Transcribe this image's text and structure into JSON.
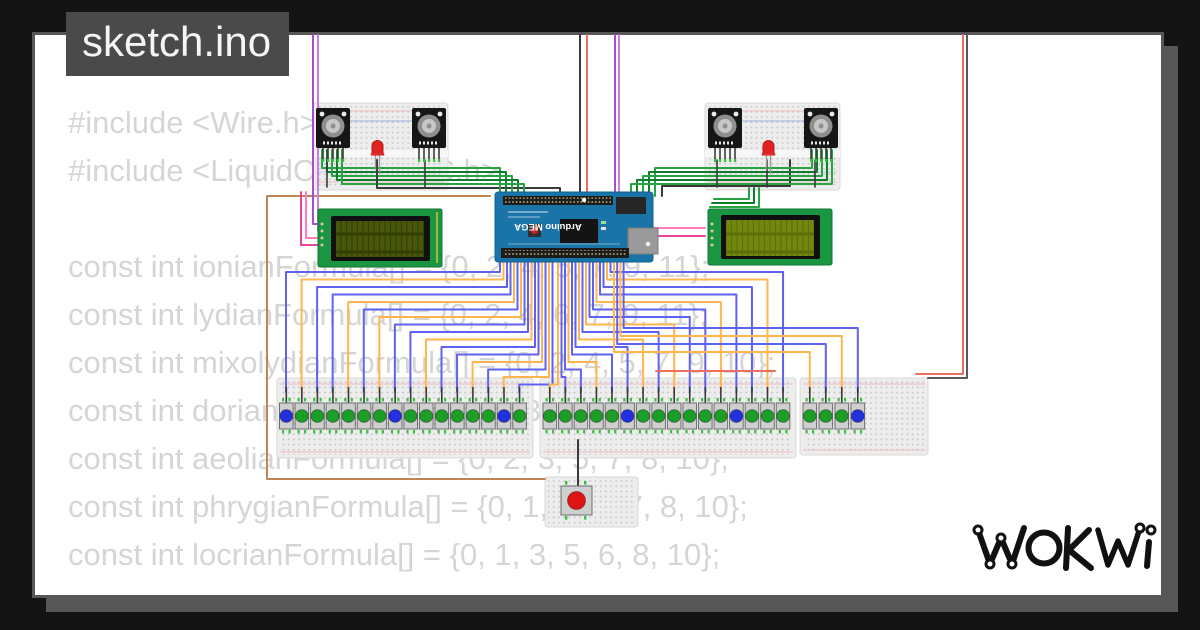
{
  "frame": {
    "title": "sketch.ino"
  },
  "code": {
    "lines": [
      "#include <Wire.h>",
      "#include <LiquidCrystal_I2C.h>",
      "",
      "const int ionianFormula[] = {0, 2, 4, 5, 7, 9, 11};",
      "const int lydianFormula[] = {0, 2, 4, 6, 7, 9, 11};",
      "const int mixolydianFormula[] = {0, 2, 4, 5, 7, 9, 10};",
      "const int dorianFormula[] = {0, 2, 3, 5, 7, 9, 10};",
      "const int aeolianFormula[] = {0, 2, 3, 5, 7, 8, 10};",
      "const int phrygianFormula[] = {0, 1, 3, 5, 7, 8, 10};",
      "const int locrianFormula[] = {0, 1, 3, 5, 6, 8, 10};"
    ]
  },
  "logo": {
    "text": "WOKWI"
  },
  "circuit": {
    "arduino_label": "Arduino MEGA",
    "button_colors": {
      "green": "#1d9e27",
      "blue": "#2430dd",
      "red": "#e01414"
    },
    "led_color": "#e02222",
    "lcd_left_screen": "#333f04",
    "lcd_right_screen": "#5c6e08",
    "wire_colors": {
      "blue": "#6161f0",
      "orange": "#ffb54d",
      "green": "#26a441",
      "green2": "#0e7d2c",
      "red": "#ef6e62",
      "black": "#3a3a3a",
      "gray": "#5a5a5a",
      "purple": "#a64ecb",
      "violet": "#c77fe0",
      "pink": "#ff7bc1",
      "magenta": "#e8459a",
      "tan": "#c08552"
    },
    "buttons": {
      "board1": [
        "blue",
        "green",
        "green",
        "green",
        "green",
        "green",
        "green",
        "blue",
        "green",
        "green",
        "green",
        "green",
        "green",
        "green",
        "blue",
        "green"
      ],
      "board2": [
        "green",
        "green",
        "green",
        "green",
        "green",
        "blue",
        "green",
        "green",
        "green",
        "green",
        "green",
        "green",
        "blue",
        "green",
        "green",
        "green"
      ],
      "board3": [
        "green",
        "green",
        "green",
        "blue"
      ],
      "mini": [
        "red"
      ]
    }
  }
}
